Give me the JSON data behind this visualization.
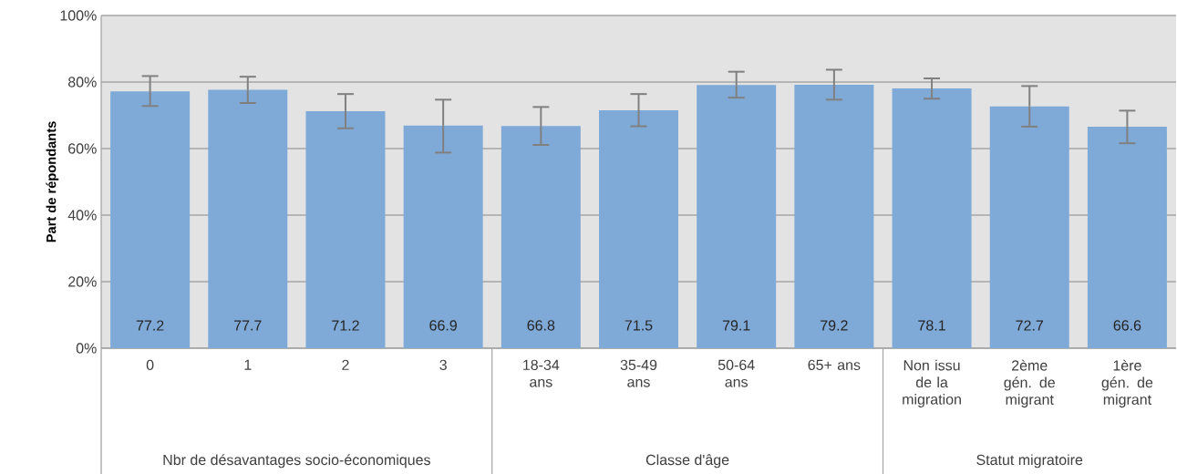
{
  "chart_data": {
    "type": "bar",
    "ylabel": "Part de répondants",
    "categories": [
      "0",
      "1",
      "2",
      "3",
      "18-34 ans",
      "35-49 ans",
      "50-64 ans",
      "65+ ans",
      "Non issu de la migration",
      "2ème gén. de migrant",
      "1ère gén. de migrant"
    ],
    "values": [
      77.2,
      77.7,
      71.2,
      66.9,
      66.8,
      71.5,
      79.1,
      79.2,
      78.1,
      72.7,
      66.6
    ],
    "errors": [
      [
        72.8,
        81.8
      ],
      [
        73.7,
        81.6
      ],
      [
        66.1,
        76.4
      ],
      [
        58.8,
        74.7
      ],
      [
        61.1,
        72.5
      ],
      [
        66.7,
        76.4
      ],
      [
        75.3,
        83.1
      ],
      [
        74.7,
        83.7
      ],
      [
        75.0,
        81.1
      ],
      [
        66.6,
        78.8
      ],
      [
        61.6,
        71.4
      ]
    ],
    "color": "#7faad8",
    "data_labels": true,
    "grid": "y",
    "ylim": [
      0,
      100
    ],
    "yticks": [
      {
        "value": 0,
        "label": "0%"
      },
      {
        "value": 20,
        "label": "20%"
      },
      {
        "value": 40,
        "label": "40%"
      },
      {
        "value": 60,
        "label": "60%"
      },
      {
        "value": 80,
        "label": "80%"
      },
      {
        "value": 100,
        "label": "100%"
      }
    ],
    "annotations": [
      "Nbr de désavantages socio-économiques",
      "Classe d'âge",
      "Statut migratoire"
    ]
  }
}
